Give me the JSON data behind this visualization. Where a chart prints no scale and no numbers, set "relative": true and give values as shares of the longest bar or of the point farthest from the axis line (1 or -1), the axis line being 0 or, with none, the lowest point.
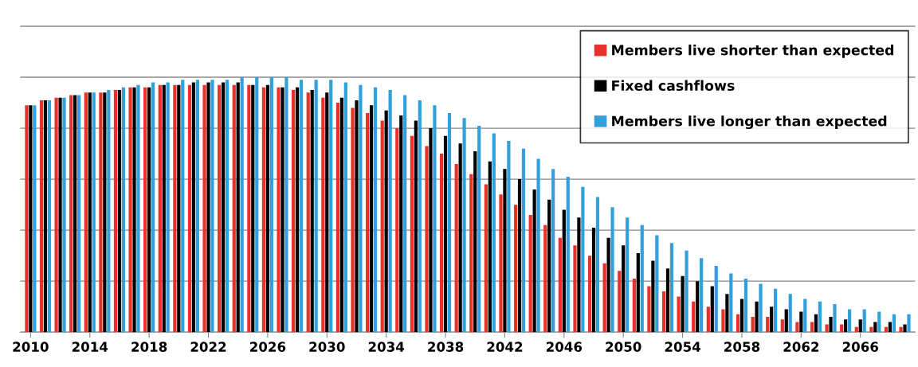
{
  "chart_data": {
    "type": "bar",
    "relative": true,
    "categories": [
      "2010",
      null,
      null,
      null,
      "2014",
      null,
      null,
      null,
      "2018",
      null,
      null,
      null,
      "2022",
      null,
      null,
      null,
      "2026",
      null,
      null,
      null,
      "2030",
      null,
      null,
      null,
      "2034",
      null,
      null,
      null,
      "2038",
      null,
      null,
      null,
      "2042",
      null,
      null,
      null,
      "2046",
      null,
      null,
      null,
      "2050",
      null,
      null,
      null,
      "2054",
      null,
      null,
      null,
      "2058",
      null,
      null,
      null,
      "2062",
      null,
      null,
      null,
      "2066",
      null,
      null,
      null
    ],
    "series": [
      {
        "name": "Members live shorter than expected",
        "color": "#e8312a",
        "values": [
          0.89,
          0.91,
          0.92,
          0.93,
          0.94,
          0.94,
          0.95,
          0.96,
          0.96,
          0.97,
          0.97,
          0.97,
          0.97,
          0.97,
          0.97,
          0.97,
          0.96,
          0.96,
          0.95,
          0.94,
          0.92,
          0.9,
          0.88,
          0.86,
          0.83,
          0.8,
          0.77,
          0.73,
          0.7,
          0.66,
          0.62,
          0.58,
          0.54,
          0.5,
          0.46,
          0.42,
          0.37,
          0.34,
          0.3,
          0.27,
          0.24,
          0.21,
          0.18,
          0.16,
          0.14,
          0.12,
          0.1,
          0.09,
          0.07,
          0.06,
          0.06,
          0.05,
          0.04,
          0.04,
          0.03,
          0.03,
          0.02,
          0.02,
          0.02,
          0.02
        ]
      },
      {
        "name": "Fixed cashflows",
        "color": "#000000",
        "values": [
          0.89,
          0.91,
          0.92,
          0.93,
          0.94,
          0.94,
          0.95,
          0.96,
          0.96,
          0.97,
          0.97,
          0.98,
          0.98,
          0.98,
          0.98,
          0.97,
          0.97,
          0.96,
          0.96,
          0.95,
          0.94,
          0.92,
          0.91,
          0.89,
          0.87,
          0.85,
          0.83,
          0.8,
          0.77,
          0.74,
          0.71,
          0.67,
          0.64,
          0.6,
          0.56,
          0.52,
          0.48,
          0.45,
          0.41,
          0.37,
          0.34,
          0.31,
          0.28,
          0.25,
          0.22,
          0.2,
          0.18,
          0.15,
          0.13,
          0.12,
          0.1,
          0.09,
          0.08,
          0.07,
          0.06,
          0.05,
          0.05,
          0.04,
          0.04,
          0.03
        ]
      },
      {
        "name": "Members live longer than expected",
        "color": "#33a0dc",
        "values": [
          0.89,
          0.91,
          0.92,
          0.93,
          0.94,
          0.95,
          0.96,
          0.97,
          0.98,
          0.98,
          0.99,
          0.99,
          0.99,
          0.99,
          1,
          1,
          1,
          1,
          0.99,
          0.99,
          0.99,
          0.98,
          0.97,
          0.96,
          0.95,
          0.93,
          0.91,
          0.89,
          0.86,
          0.84,
          0.81,
          0.78,
          0.75,
          0.72,
          0.68,
          0.64,
          0.61,
          0.57,
          0.53,
          0.49,
          0.45,
          0.42,
          0.38,
          0.35,
          0.32,
          0.29,
          0.26,
          0.23,
          0.21,
          0.19,
          0.17,
          0.15,
          0.13,
          0.12,
          0.11,
          0.09,
          0.09,
          0.08,
          0.07,
          0.07
        ]
      }
    ],
    "grid": "y",
    "legend": "top right"
  }
}
